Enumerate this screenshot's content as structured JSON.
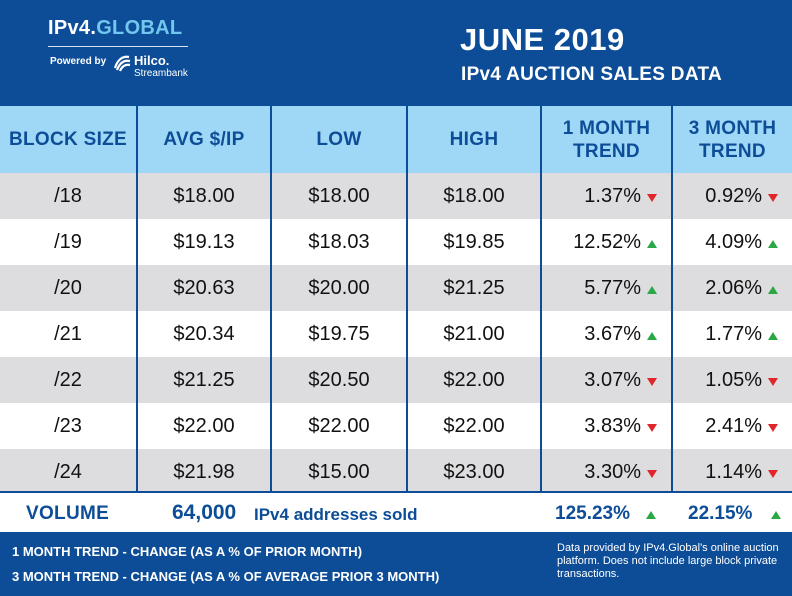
{
  "header": {
    "brand_prefix": "IPv4.",
    "brand_suffix": "GLOBAL",
    "powered_by": "Powered by",
    "partner_name": "Hilco.",
    "partner_sub": "Streambank",
    "title": "JUNE 2019",
    "subtitle": "IPv4 AUCTION SALES DATA"
  },
  "table": {
    "columns": [
      "BLOCK SIZE",
      "AVG $/IP",
      "LOW",
      "HIGH",
      "1 MONTH TREND",
      "3 MONTH TREND"
    ],
    "rows": [
      {
        "block": "/18",
        "avg": "$18.00",
        "low": "$18.00",
        "high": "$18.00",
        "t1": "1.37%",
        "t1_dir": "down",
        "t3": "0.92%",
        "t3_dir": "down"
      },
      {
        "block": "/19",
        "avg": "$19.13",
        "low": "$18.03",
        "high": "$19.85",
        "t1": "12.52%",
        "t1_dir": "up",
        "t3": "4.09%",
        "t3_dir": "up"
      },
      {
        "block": "/20",
        "avg": "$20.63",
        "low": "$20.00",
        "high": "$21.25",
        "t1": "5.77%",
        "t1_dir": "up",
        "t3": "2.06%",
        "t3_dir": "up"
      },
      {
        "block": "/21",
        "avg": "$20.34",
        "low": "$19.75",
        "high": "$21.00",
        "t1": "3.67%",
        "t1_dir": "up",
        "t3": "1.77%",
        "t3_dir": "up"
      },
      {
        "block": "/22",
        "avg": "$21.25",
        "low": "$20.50",
        "high": "$22.00",
        "t1": "3.07%",
        "t1_dir": "down",
        "t3": "1.05%",
        "t3_dir": "down"
      },
      {
        "block": "/23",
        "avg": "$22.00",
        "low": "$22.00",
        "high": "$22.00",
        "t1": "3.83%",
        "t1_dir": "down",
        "t3": "2.41%",
        "t3_dir": "down"
      },
      {
        "block": "/24",
        "avg": "$21.98",
        "low": "$15.00",
        "high": "$23.00",
        "t1": "3.30%",
        "t1_dir": "down",
        "t3": "1.14%",
        "t3_dir": "down"
      }
    ]
  },
  "volume": {
    "label": "VOLUME",
    "count": "64,000",
    "text": "IPv4 addresses sold",
    "t1": "125.23%",
    "t1_dir": "up",
    "t3": "22.15%",
    "t3_dir": "up"
  },
  "footer": {
    "legend_1": "1 MONTH TREND - CHANGE (AS A % OF PRIOR MONTH)",
    "legend_3": "3 MONTH TREND - CHANGE (AS A % OF AVERAGE PRIOR 3 MONTH)",
    "note": "Data provided by IPv4.Global's online auction platform. Does not include large block private transactions."
  },
  "colors": {
    "brand_blue": "#0d4d97",
    "header_light_blue": "#9fd8f7",
    "row_shade": "#dddcde",
    "trend_up": "#2aa846",
    "trend_down": "#e0262a",
    "brand_accent": "#72c7ee"
  }
}
